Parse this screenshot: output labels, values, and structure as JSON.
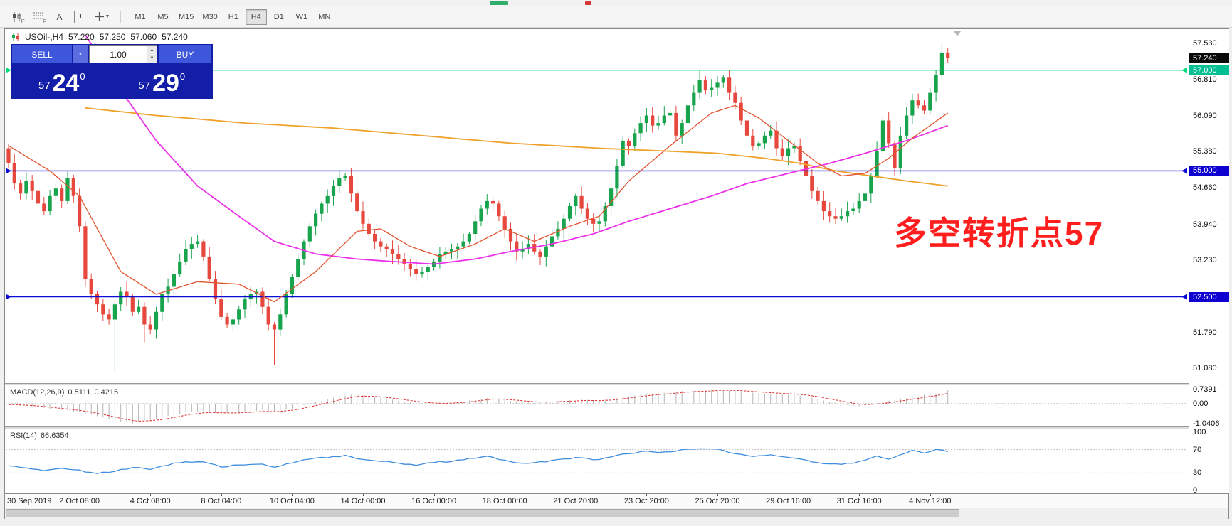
{
  "toolbar": {
    "timeframes": [
      "M1",
      "M5",
      "M15",
      "M30",
      "H1",
      "H4",
      "D1",
      "W1",
      "MN"
    ],
    "active_timeframe": "H4",
    "icon_candles_sub": "E",
    "icon_grid_sub": "F",
    "icon_a": "A",
    "icon_t": "T"
  },
  "chart_header": {
    "symbol": "USOil-,H4",
    "open": "57.220",
    "high": "57.250",
    "low": "57.060",
    "close": "57.240"
  },
  "trade_panel": {
    "sell_label": "SELL",
    "buy_label": "BUY",
    "volume": "1.00",
    "sell_price": {
      "prefix": "57",
      "big": "24",
      "sup": "0"
    },
    "buy_price": {
      "prefix": "57",
      "big": "29",
      "sup": "0"
    }
  },
  "annotation": {
    "text": "多空转折点57"
  },
  "price_axis": {
    "ticks": [
      "57.530",
      "56.810",
      "56.090",
      "55.380",
      "54.660",
      "53.940",
      "53.230",
      "52.510",
      "51.790",
      "51.080"
    ],
    "badges": [
      {
        "label": "57.240",
        "price": 57.24,
        "bg": "#0a0a0a"
      },
      {
        "label": "57.000",
        "price": 57.0,
        "bg": "#00bf92"
      },
      {
        "label": "55.000",
        "price": 55.0,
        "bg": "#0d00d0"
      },
      {
        "label": "52.500",
        "price": 52.5,
        "bg": "#0d00d0"
      }
    ]
  },
  "macd": {
    "title": "MACD(12,26,9)",
    "value_main": "0.5111",
    "value_signal": "0.4215",
    "axis_labels": [
      "0.7391",
      "0.00",
      "-1.0406"
    ],
    "vmax": 0.7391,
    "vmin": -1.0406
  },
  "rsi": {
    "title": "RSI(14)",
    "value": "66.6354",
    "axis_labels": [
      "100",
      "70",
      "30",
      "0"
    ],
    "overbought": 70,
    "oversold": 30
  },
  "time_axis": [
    "30 Sep 2019",
    "2 Oct 08:00",
    "4 Oct 08:00",
    "8 Oct 04:00",
    "10 Oct 04:00",
    "14 Oct 00:00",
    "16 Oct 00:00",
    "18 Oct 00:00",
    "21 Oct 20:00",
    "23 Oct 20:00",
    "25 Oct 20:00",
    "29 Oct 16:00",
    "31 Oct 16:00",
    "4 Nov 12:00"
  ],
  "colors": {
    "up": "#18a44c",
    "down": "#e6483d",
    "ma_orange": "#efa22a",
    "ma_magenta": "#ea30e8",
    "ma_red": "#e2532f",
    "hline_blue": "#0b0bd6",
    "hline_green": "#00db7c",
    "macd_hist": "#b4b4b4",
    "macd_signal": "#dd2c2c",
    "rsi_line": "#3f8edc",
    "annotation": "#ff1e1e"
  },
  "chart_data": {
    "type": "candlestick",
    "symbol_timeframe": "USOil-,H4",
    "current_bar": {
      "open": 57.22,
      "high": 57.25,
      "low": 57.06,
      "close": 57.24
    },
    "price_top": 57.8,
    "price_bottom": 50.8,
    "first_open": 55.45,
    "closes": [
      55.15,
      54.75,
      54.55,
      54.8,
      54.6,
      54.35,
      54.2,
      54.5,
      54.65,
      54.4,
      54.85,
      54.5,
      53.9,
      52.85,
      52.55,
      52.35,
      52.15,
      52.05,
      52.35,
      52.6,
      52.5,
      52.2,
      52.3,
      51.95,
      51.85,
      52.2,
      52.55,
      52.7,
      52.95,
      53.2,
      53.45,
      53.55,
      53.6,
      53.3,
      52.85,
      52.45,
      52.1,
      51.95,
      52.05,
      52.25,
      52.45,
      52.55,
      52.6,
      52.3,
      51.95,
      51.85,
      52.15,
      52.55,
      52.9,
      53.25,
      53.6,
      53.9,
      54.15,
      54.35,
      54.5,
      54.7,
      54.85,
      54.9,
      54.55,
      54.2,
      53.95,
      53.75,
      53.6,
      53.5,
      53.45,
      53.35,
      53.25,
      53.15,
      53.05,
      52.95,
      53.0,
      53.1,
      53.2,
      53.35,
      53.4,
      53.45,
      53.5,
      53.6,
      53.75,
      54.0,
      54.25,
      54.4,
      54.35,
      54.1,
      53.85,
      53.6,
      53.4,
      53.45,
      53.55,
      53.4,
      53.3,
      53.5,
      53.7,
      53.85,
      54.05,
      54.3,
      54.5,
      54.25,
      54.05,
      53.95,
      54.0,
      54.3,
      54.65,
      55.1,
      55.6,
      55.5,
      55.75,
      55.95,
      56.1,
      55.9,
      55.95,
      56.1,
      56.15,
      55.7,
      55.95,
      56.3,
      56.55,
      56.8,
      56.6,
      56.65,
      56.75,
      56.85,
      56.55,
      56.35,
      56.0,
      55.7,
      55.5,
      55.55,
      55.7,
      55.8,
      55.45,
      55.3,
      55.45,
      55.5,
      55.2,
      54.9,
      54.6,
      54.4,
      54.2,
      54.1,
      54.05,
      54.1,
      54.2,
      54.25,
      54.4,
      54.55,
      54.9,
      55.4,
      56.0,
      55.55,
      55.05,
      55.7,
      56.1,
      56.4,
      56.3,
      56.2,
      56.55,
      56.9,
      57.35,
      57.24
    ],
    "wick_overrides": {
      "18": {
        "low": 51.0
      },
      "23": {
        "low": 51.6
      },
      "45": {
        "low": 51.15
      },
      "117": {
        "high": 57.0
      },
      "158": {
        "high": 57.53
      }
    },
    "hlines": [
      {
        "price": 57.0,
        "color": "#00db7c"
      },
      {
        "price": 55.0,
        "color": "#0b0bd6"
      },
      {
        "price": 52.5,
        "color": "#0b0bd6"
      }
    ],
    "ma_orange": [
      [
        13,
        56.25
      ],
      [
        25,
        56.1
      ],
      [
        40,
        55.95
      ],
      [
        55,
        55.85
      ],
      [
        70,
        55.7
      ],
      [
        85,
        55.55
      ],
      [
        100,
        55.45
      ],
      [
        110,
        55.4
      ],
      [
        120,
        55.35
      ],
      [
        128,
        55.25
      ],
      [
        134,
        55.15
      ],
      [
        140,
        55.0
      ],
      [
        146,
        54.9
      ],
      [
        152,
        54.8
      ],
      [
        159,
        54.7
      ]
    ],
    "ma_magenta": [
      [
        13,
        57.7
      ],
      [
        19,
        56.6
      ],
      [
        25,
        55.6
      ],
      [
        32,
        54.7
      ],
      [
        39,
        54.1
      ],
      [
        45,
        53.6
      ],
      [
        52,
        53.35
      ],
      [
        59,
        53.25
      ],
      [
        65,
        53.2
      ],
      [
        72,
        53.15
      ],
      [
        79,
        53.25
      ],
      [
        85,
        53.4
      ],
      [
        92,
        53.55
      ],
      [
        99,
        53.75
      ],
      [
        105,
        54.0
      ],
      [
        112,
        54.25
      ],
      [
        119,
        54.5
      ],
      [
        125,
        54.75
      ],
      [
        132,
        54.95
      ],
      [
        139,
        55.15
      ],
      [
        145,
        55.35
      ],
      [
        152,
        55.6
      ],
      [
        159,
        55.9
      ]
    ],
    "ma_red": [
      [
        0,
        55.5
      ],
      [
        7,
        55.0
      ],
      [
        12,
        54.5
      ],
      [
        19,
        53.0
      ],
      [
        25,
        52.55
      ],
      [
        32,
        52.8
      ],
      [
        39,
        52.75
      ],
      [
        45,
        52.4
      ],
      [
        52,
        53.0
      ],
      [
        59,
        53.8
      ],
      [
        63,
        53.85
      ],
      [
        68,
        53.5
      ],
      [
        73,
        53.3
      ],
      [
        79,
        53.55
      ],
      [
        84,
        53.85
      ],
      [
        89,
        53.6
      ],
      [
        95,
        53.9
      ],
      [
        100,
        54.1
      ],
      [
        105,
        54.8
      ],
      [
        112,
        55.5
      ],
      [
        119,
        56.15
      ],
      [
        123,
        56.3
      ],
      [
        127,
        56.05
      ],
      [
        132,
        55.6
      ],
      [
        137,
        55.15
      ],
      [
        141,
        54.9
      ],
      [
        145,
        54.95
      ],
      [
        149,
        55.25
      ],
      [
        153,
        55.65
      ],
      [
        159,
        56.15
      ]
    ],
    "macd_keypoints": [
      [
        0,
        -0.05
      ],
      [
        4,
        -0.15
      ],
      [
        8,
        -0.3
      ],
      [
        12,
        -0.45
      ],
      [
        16,
        -0.7
      ],
      [
        19,
        -0.95
      ],
      [
        21,
        -1.0
      ],
      [
        24,
        -0.85
      ],
      [
        27,
        -0.65
      ],
      [
        30,
        -0.45
      ],
      [
        33,
        -0.4
      ],
      [
        36,
        -0.5
      ],
      [
        39,
        -0.45
      ],
      [
        42,
        -0.35
      ],
      [
        45,
        -0.45
      ],
      [
        48,
        -0.25
      ],
      [
        51,
        0.0
      ],
      [
        54,
        0.25
      ],
      [
        57,
        0.45
      ],
      [
        59,
        0.5
      ],
      [
        62,
        0.35
      ],
      [
        65,
        0.2
      ],
      [
        68,
        0.05
      ],
      [
        71,
        -0.02
      ],
      [
        74,
        0.03
      ],
      [
        77,
        0.12
      ],
      [
        80,
        0.28
      ],
      [
        82,
        0.3
      ],
      [
        85,
        0.15
      ],
      [
        88,
        0.05
      ],
      [
        91,
        0.05
      ],
      [
        94,
        0.15
      ],
      [
        97,
        0.2
      ],
      [
        100,
        0.15
      ],
      [
        103,
        0.3
      ],
      [
        106,
        0.45
      ],
      [
        109,
        0.55
      ],
      [
        112,
        0.6
      ],
      [
        115,
        0.65
      ],
      [
        118,
        0.7
      ],
      [
        121,
        0.72
      ],
      [
        124,
        0.65
      ],
      [
        127,
        0.55
      ],
      [
        130,
        0.5
      ],
      [
        133,
        0.45
      ],
      [
        136,
        0.3
      ],
      [
        139,
        0.12
      ],
      [
        141,
        0.0
      ],
      [
        143,
        -0.12
      ],
      [
        145,
        -0.1
      ],
      [
        147,
        0.05
      ],
      [
        149,
        0.15
      ],
      [
        151,
        0.25
      ],
      [
        153,
        0.35
      ],
      [
        155,
        0.45
      ],
      [
        157,
        0.55
      ],
      [
        159,
        0.68
      ]
    ],
    "rsi_keypoints": [
      [
        0,
        42
      ],
      [
        3,
        38
      ],
      [
        6,
        35
      ],
      [
        9,
        38
      ],
      [
        12,
        34
      ],
      [
        15,
        30
      ],
      [
        18,
        33
      ],
      [
        21,
        40
      ],
      [
        24,
        36
      ],
      [
        27,
        44
      ],
      [
        30,
        50
      ],
      [
        33,
        48
      ],
      [
        36,
        41
      ],
      [
        39,
        43
      ],
      [
        42,
        46
      ],
      [
        45,
        40
      ],
      [
        48,
        48
      ],
      [
        51,
        54
      ],
      [
        54,
        57
      ],
      [
        57,
        60
      ],
      [
        60,
        53
      ],
      [
        63,
        50
      ],
      [
        66,
        47
      ],
      [
        69,
        44
      ],
      [
        72,
        48
      ],
      [
        75,
        50
      ],
      [
        78,
        55
      ],
      [
        81,
        59
      ],
      [
        84,
        51
      ],
      [
        87,
        47
      ],
      [
        90,
        49
      ],
      [
        93,
        52
      ],
      [
        96,
        57
      ],
      [
        99,
        52
      ],
      [
        102,
        58
      ],
      [
        105,
        64
      ],
      [
        108,
        67
      ],
      [
        111,
        65
      ],
      [
        114,
        69
      ],
      [
        117,
        72
      ],
      [
        120,
        70
      ],
      [
        123,
        64
      ],
      [
        126,
        59
      ],
      [
        129,
        62
      ],
      [
        132,
        57
      ],
      [
        135,
        52
      ],
      [
        138,
        46
      ],
      [
        141,
        44
      ],
      [
        144,
        49
      ],
      [
        147,
        60
      ],
      [
        149,
        54
      ],
      [
        151,
        62
      ],
      [
        153,
        68
      ],
      [
        155,
        64
      ],
      [
        157,
        70
      ],
      [
        159,
        66.6
      ]
    ]
  }
}
